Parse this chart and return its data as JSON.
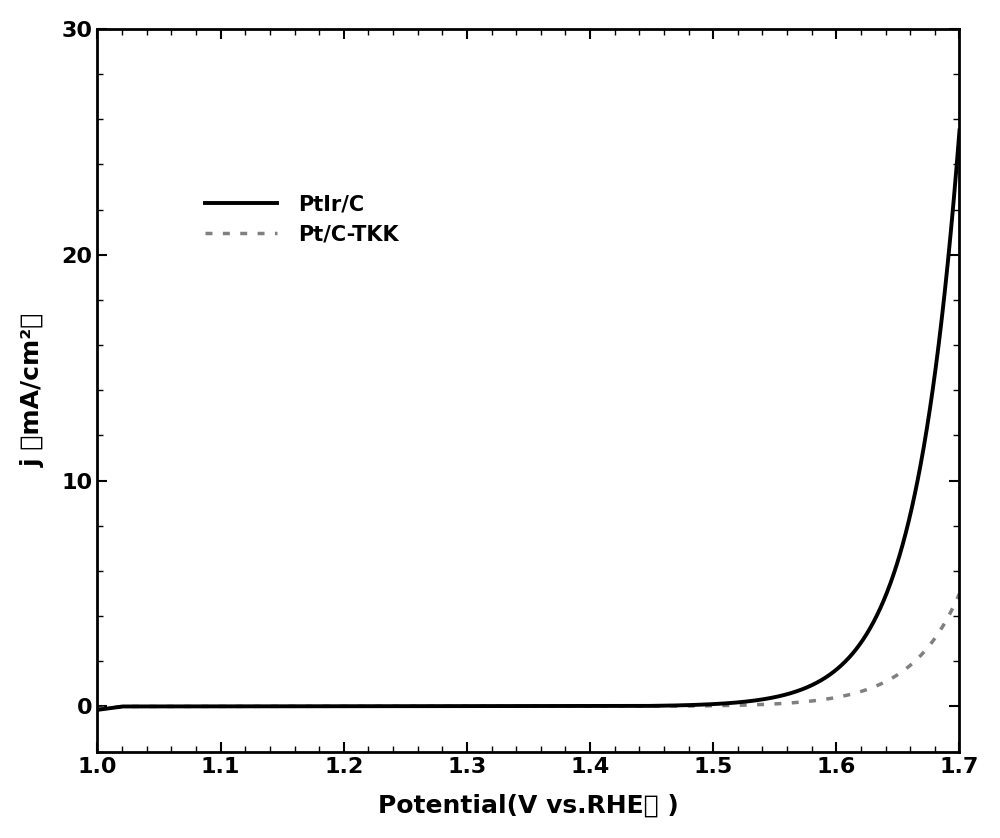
{
  "title": "",
  "xlabel": "Potential(V vs.RHE） )",
  "ylabel": "j （mA/cm²）",
  "xlim": [
    1.0,
    1.7
  ],
  "ylim": [
    -2,
    30
  ],
  "xticks": [
    1.0,
    1.1,
    1.2,
    1.3,
    1.4,
    1.5,
    1.6,
    1.7
  ],
  "yticks": [
    0,
    10,
    20,
    30
  ],
  "line1_label": "PtIr/C",
  "line2_label": "Pt/C-TKK",
  "line1_color": "#000000",
  "line2_color": "#808080",
  "background_color": "#ffffff",
  "linewidth1": 2.8,
  "linewidth2": 2.5,
  "legend_fontsize": 15,
  "axis_label_fontsize": 18,
  "tick_fontsize": 16,
  "figure_width": 10.0,
  "figure_height": 8.38
}
